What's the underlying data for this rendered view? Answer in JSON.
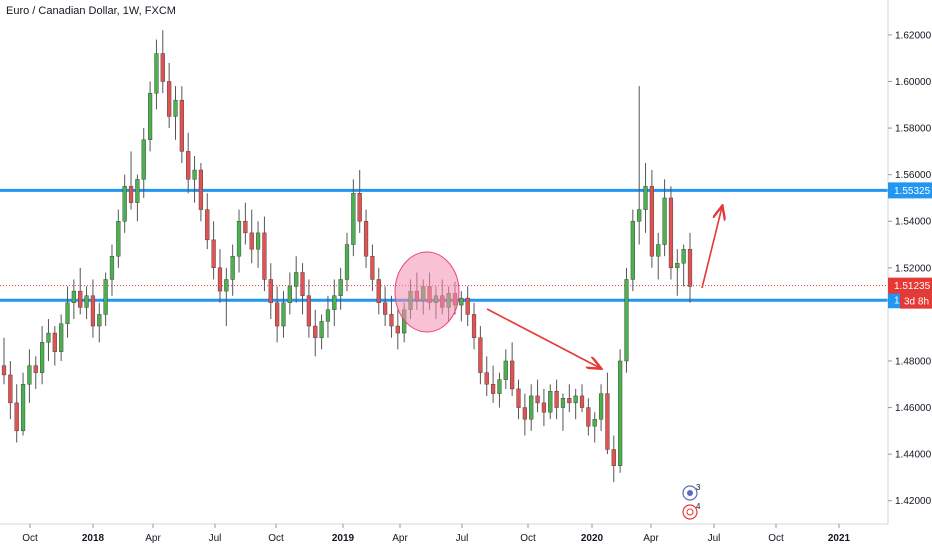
{
  "chart_data": {
    "type": "candlestick",
    "title": "Euro / Canadian Dollar, 1W, FXCM",
    "ylim": [
      1.41,
      1.635
    ],
    "y_ticks": [
      "1.62000",
      "1.60000",
      "1.58000",
      "1.56000",
      "1.54000",
      "1.52000",
      "1.48000",
      "1.46000",
      "1.44000",
      "1.42000"
    ],
    "x_ticks": [
      "Oct",
      "2018",
      "Apr",
      "Jul",
      "Oct",
      "2019",
      "Apr",
      "Jul",
      "Oct",
      "2020",
      "Apr",
      "Jul",
      "Oct",
      "2021"
    ],
    "bold_x_ticks": [
      "2018",
      "2019",
      "2020",
      "2021"
    ],
    "levels": [
      {
        "name": "resistance",
        "value": 1.55325,
        "label": "1.55325",
        "color": "#2196F3"
      },
      {
        "name": "support",
        "value": 1.50608,
        "label": "1.50608",
        "color": "#2196F3"
      }
    ],
    "current_price": {
      "value": 1.51235,
      "label": "1.51235",
      "countdown": "3d 8h",
      "color": "#e53935"
    },
    "colors": {
      "up": "#26a69a",
      "down": "#ef5350",
      "up_body": "#4caf50",
      "down_body": "#e05353",
      "wick": "#555555"
    },
    "annotations": [
      {
        "type": "ellipse",
        "color": "#f48fb1"
      },
      {
        "type": "arrow",
        "color": "#e53935"
      },
      {
        "type": "arrow",
        "color": "#e53935"
      }
    ],
    "event_badges": [
      "3",
      "4"
    ],
    "candles": [
      [
        1.478,
        1.49,
        1.47,
        1.474
      ],
      [
        1.474,
        1.48,
        1.455,
        1.462
      ],
      [
        1.462,
        1.47,
        1.445,
        1.45
      ],
      [
        1.45,
        1.475,
        1.448,
        1.47
      ],
      [
        1.47,
        1.485,
        1.462,
        1.478
      ],
      [
        1.478,
        1.482,
        1.468,
        1.475
      ],
      [
        1.475,
        1.495,
        1.47,
        1.488
      ],
      [
        1.488,
        1.498,
        1.48,
        1.492
      ],
      [
        1.492,
        1.495,
        1.478,
        1.484
      ],
      [
        1.484,
        1.5,
        1.48,
        1.496
      ],
      [
        1.496,
        1.512,
        1.49,
        1.505
      ],
      [
        1.505,
        1.515,
        1.498,
        1.51
      ],
      [
        1.51,
        1.52,
        1.5,
        1.503
      ],
      [
        1.503,
        1.512,
        1.498,
        1.508
      ],
      [
        1.508,
        1.515,
        1.49,
        1.495
      ],
      [
        1.495,
        1.505,
        1.488,
        1.5
      ],
      [
        1.5,
        1.518,
        1.495,
        1.515
      ],
      [
        1.515,
        1.53,
        1.508,
        1.525
      ],
      [
        1.525,
        1.545,
        1.52,
        1.54
      ],
      [
        1.54,
        1.56,
        1.535,
        1.555
      ],
      [
        1.555,
        1.57,
        1.545,
        1.548
      ],
      [
        1.548,
        1.56,
        1.54,
        1.558
      ],
      [
        1.558,
        1.58,
        1.55,
        1.575
      ],
      [
        1.575,
        1.6,
        1.57,
        1.595
      ],
      [
        1.595,
        1.618,
        1.588,
        1.612
      ],
      [
        1.612,
        1.622,
        1.595,
        1.6
      ],
      [
        1.6,
        1.608,
        1.58,
        1.585
      ],
      [
        1.585,
        1.598,
        1.575,
        1.592
      ],
      [
        1.592,
        1.598,
        1.565,
        1.57
      ],
      [
        1.57,
        1.578,
        1.552,
        1.558
      ],
      [
        1.558,
        1.568,
        1.548,
        1.562
      ],
      [
        1.562,
        1.565,
        1.54,
        1.545
      ],
      [
        1.545,
        1.552,
        1.528,
        1.532
      ],
      [
        1.532,
        1.54,
        1.515,
        1.52
      ],
      [
        1.52,
        1.528,
        1.505,
        1.51
      ],
      [
        1.51,
        1.52,
        1.495,
        1.515
      ],
      [
        1.515,
        1.53,
        1.508,
        1.525
      ],
      [
        1.525,
        1.545,
        1.518,
        1.54
      ],
      [
        1.54,
        1.548,
        1.53,
        1.535
      ],
      [
        1.535,
        1.545,
        1.522,
        1.528
      ],
      [
        1.528,
        1.54,
        1.52,
        1.535
      ],
      [
        1.535,
        1.542,
        1.51,
        1.515
      ],
      [
        1.515,
        1.522,
        1.498,
        1.505
      ],
      [
        1.505,
        1.512,
        1.488,
        1.495
      ],
      [
        1.495,
        1.51,
        1.49,
        1.505
      ],
      [
        1.505,
        1.518,
        1.5,
        1.512
      ],
      [
        1.512,
        1.525,
        1.505,
        1.518
      ],
      [
        1.518,
        1.522,
        1.5,
        1.508
      ],
      [
        1.508,
        1.515,
        1.49,
        1.495
      ],
      [
        1.495,
        1.502,
        1.482,
        1.49
      ],
      [
        1.49,
        1.5,
        1.485,
        1.497
      ],
      [
        1.497,
        1.508,
        1.49,
        1.502
      ],
      [
        1.502,
        1.515,
        1.495,
        1.508
      ],
      [
        1.508,
        1.52,
        1.502,
        1.515
      ],
      [
        1.515,
        1.535,
        1.51,
        1.53
      ],
      [
        1.53,
        1.558,
        1.525,
        1.552
      ],
      [
        1.552,
        1.562,
        1.535,
        1.54
      ],
      [
        1.54,
        1.545,
        1.52,
        1.525
      ],
      [
        1.525,
        1.53,
        1.51,
        1.515
      ],
      [
        1.515,
        1.52,
        1.5,
        1.505
      ],
      [
        1.505,
        1.512,
        1.495,
        1.5
      ],
      [
        1.5,
        1.508,
        1.49,
        1.495
      ],
      [
        1.495,
        1.502,
        1.485,
        1.492
      ],
      [
        1.492,
        1.505,
        1.488,
        1.502
      ],
      [
        1.502,
        1.515,
        1.498,
        1.51
      ],
      [
        1.51,
        1.518,
        1.502,
        1.506
      ],
      [
        1.506,
        1.515,
        1.5,
        1.512
      ],
      [
        1.512,
        1.518,
        1.502,
        1.505
      ],
      [
        1.505,
        1.512,
        1.498,
        1.508
      ],
      [
        1.508,
        1.515,
        1.5,
        1.503
      ],
      [
        1.503,
        1.512,
        1.497,
        1.509
      ],
      [
        1.509,
        1.514,
        1.5,
        1.504
      ],
      [
        1.504,
        1.51,
        1.497,
        1.507
      ],
      [
        1.507,
        1.512,
        1.495,
        1.5
      ],
      [
        1.5,
        1.505,
        1.485,
        1.49
      ],
      [
        1.49,
        1.495,
        1.47,
        1.475
      ],
      [
        1.475,
        1.482,
        1.465,
        1.47
      ],
      [
        1.47,
        1.478,
        1.462,
        1.466
      ],
      [
        1.466,
        1.475,
        1.46,
        1.472
      ],
      [
        1.472,
        1.485,
        1.468,
        1.48
      ],
      [
        1.48,
        1.488,
        1.465,
        1.468
      ],
      [
        1.468,
        1.472,
        1.455,
        1.46
      ],
      [
        1.46,
        1.466,
        1.448,
        1.455
      ],
      [
        1.455,
        1.47,
        1.45,
        1.465
      ],
      [
        1.465,
        1.472,
        1.458,
        1.462
      ],
      [
        1.462,
        1.468,
        1.452,
        1.458
      ],
      [
        1.458,
        1.47,
        1.455,
        1.467
      ],
      [
        1.467,
        1.472,
        1.455,
        1.46
      ],
      [
        1.46,
        1.466,
        1.45,
        1.464
      ],
      [
        1.464,
        1.47,
        1.458,
        1.462
      ],
      [
        1.462,
        1.468,
        1.455,
        1.465
      ],
      [
        1.465,
        1.47,
        1.458,
        1.46
      ],
      [
        1.46,
        1.464,
        1.448,
        1.452
      ],
      [
        1.452,
        1.458,
        1.445,
        1.455
      ],
      [
        1.455,
        1.47,
        1.45,
        1.466
      ],
      [
        1.466,
        1.475,
        1.44,
        1.442
      ],
      [
        1.442,
        1.448,
        1.428,
        1.435
      ],
      [
        1.435,
        1.485,
        1.432,
        1.48
      ],
      [
        1.48,
        1.52,
        1.475,
        1.515
      ],
      [
        1.515,
        1.545,
        1.51,
        1.54
      ],
      [
        1.54,
        1.598,
        1.53,
        1.545
      ],
      [
        1.545,
        1.565,
        1.535,
        1.555
      ],
      [
        1.555,
        1.562,
        1.52,
        1.525
      ],
      [
        1.525,
        1.535,
        1.515,
        1.53
      ],
      [
        1.53,
        1.558,
        1.525,
        1.55
      ],
      [
        1.55,
        1.555,
        1.515,
        1.52
      ],
      [
        1.52,
        1.528,
        1.508,
        1.522
      ],
      [
        1.522,
        1.53,
        1.512,
        1.528
      ],
      [
        1.528,
        1.535,
        1.505,
        1.512
      ]
    ]
  }
}
